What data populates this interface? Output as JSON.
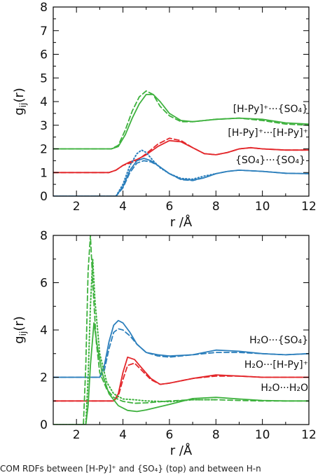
{
  "caption": "COM RDFs between [H-Py]⁺ and {SO₄} (top) and between H-n",
  "colors": {
    "green": "#3db13d",
    "red": "#e3272b",
    "blue": "#2c7fbc"
  },
  "chart_data": [
    {
      "type": "line",
      "panel": "top",
      "xlabel": "r /Å",
      "ylabel": "g",
      "ylabel_sub": "ij",
      "ylabel_suffix": "(r)",
      "xlim": [
        1,
        12
      ],
      "ylim": [
        0,
        8
      ],
      "xticks": [
        2,
        4,
        6,
        8,
        10,
        12
      ],
      "yticks": [
        0,
        1,
        2,
        3,
        4,
        5,
        6,
        7,
        8
      ],
      "grid": false,
      "series": [
        {
          "name": "[H-Py]⁺···{SO₄}",
          "color": "green",
          "style": "solid",
          "x": [
            1,
            3.5,
            3.8,
            4.1,
            4.4,
            4.7,
            5.0,
            5.3,
            5.6,
            6.0,
            6.5,
            7.0,
            7.5,
            8.0,
            9.0,
            10.0,
            11.0,
            12.0
          ],
          "y": [
            2.0,
            2.0,
            2.1,
            2.6,
            3.3,
            3.9,
            4.3,
            4.3,
            4.0,
            3.5,
            3.2,
            3.15,
            3.2,
            3.25,
            3.3,
            3.25,
            3.1,
            3.05
          ]
        },
        {
          "name": "",
          "color": "green",
          "style": "dashed",
          "x": [
            1,
            3.5,
            3.8,
            4.1,
            4.4,
            4.7,
            5.0,
            5.3,
            5.6,
            6.0,
            6.5,
            7.0,
            7.5,
            8.0,
            9.0,
            10.0,
            11.0,
            12.0
          ],
          "y": [
            2.0,
            2.0,
            2.15,
            2.8,
            3.6,
            4.2,
            4.45,
            4.3,
            3.8,
            3.4,
            3.15,
            3.15,
            3.2,
            3.25,
            3.3,
            3.2,
            3.05,
            3.0
          ]
        },
        {
          "name": "[H-Py]⁺···[H-Py]⁺",
          "color": "red",
          "style": "solid",
          "x": [
            1,
            3.4,
            3.7,
            4.0,
            4.3,
            4.6,
            5.0,
            5.5,
            6.0,
            6.5,
            7.0,
            7.5,
            8.0,
            8.5,
            9.0,
            9.5,
            10.0,
            11.0,
            12.0
          ],
          "y": [
            1.0,
            1.0,
            1.1,
            1.3,
            1.45,
            1.55,
            1.75,
            2.1,
            2.35,
            2.3,
            2.05,
            1.8,
            1.75,
            1.85,
            2.0,
            2.05,
            2.0,
            1.95,
            1.95
          ]
        },
        {
          "name": "",
          "color": "red",
          "style": "dashed",
          "x": [
            1,
            3.4,
            3.7,
            4.0,
            4.3,
            4.6,
            5.0,
            5.5,
            6.0,
            6.5,
            7.0,
            7.5,
            8.0,
            8.5,
            9.0,
            9.5,
            10.0,
            11.0,
            12.0
          ],
          "y": [
            1.0,
            1.0,
            1.1,
            1.3,
            1.4,
            1.5,
            1.8,
            2.2,
            2.45,
            2.35,
            2.05,
            1.8,
            1.75,
            1.85,
            2.0,
            2.05,
            2.0,
            1.95,
            1.95
          ]
        },
        {
          "name": "{SO₄}···{SO₄}",
          "color": "blue",
          "style": "solid",
          "x": [
            1,
            3.7,
            4.0,
            4.3,
            4.6,
            4.9,
            5.2,
            5.5,
            6.0,
            6.5,
            7.0,
            7.5,
            8.0,
            8.5,
            9.0,
            10.0,
            11.0,
            12.0
          ],
          "y": [
            0.0,
            0.0,
            0.4,
            1.1,
            1.5,
            1.6,
            1.5,
            1.3,
            0.95,
            0.72,
            0.68,
            0.78,
            0.95,
            1.05,
            1.1,
            1.05,
            0.97,
            0.95
          ]
        },
        {
          "name": "",
          "color": "blue",
          "style": "dashed",
          "x": [
            1,
            3.7,
            4.0,
            4.3,
            4.6,
            4.9,
            5.2,
            5.5,
            6.0,
            6.5,
            7.0,
            7.5,
            8.0,
            8.5,
            9.0,
            10.0,
            11.0,
            12.0
          ],
          "y": [
            0.0,
            0.0,
            0.35,
            1.0,
            1.4,
            1.5,
            1.45,
            1.3,
            0.95,
            0.7,
            0.66,
            0.78,
            0.95,
            1.05,
            1.1,
            1.05,
            0.97,
            0.95
          ]
        },
        {
          "name": "",
          "color": "blue",
          "style": "dotted",
          "x": [
            1,
            3.7,
            4.0,
            4.3,
            4.6,
            4.8,
            5.0,
            5.3,
            5.6,
            6.0,
            6.5,
            7.0,
            7.5,
            8.0
          ],
          "y": [
            0.0,
            0.0,
            0.5,
            1.3,
            1.8,
            1.95,
            1.85,
            1.5,
            1.2,
            0.95,
            0.75,
            0.72,
            0.85,
            0.95
          ]
        }
      ]
    },
    {
      "type": "line",
      "panel": "bottom",
      "xlabel": "r /Å",
      "ylabel": "g",
      "ylabel_sub": "ij",
      "ylabel_suffix": "(r)",
      "xlim": [
        1,
        12
      ],
      "ylim": [
        0,
        8
      ],
      "xticks": [
        2,
        4,
        6,
        8,
        10,
        12
      ],
      "yticks": [
        0,
        2,
        4,
        6,
        8
      ],
      "grid": false,
      "series": [
        {
          "name": "H₂O···{SO₄}",
          "color": "blue",
          "style": "solid",
          "x": [
            1,
            3.0,
            3.2,
            3.4,
            3.6,
            3.8,
            4.0,
            4.3,
            4.6,
            5.0,
            5.5,
            6.0,
            7.0,
            8.0,
            9.0,
            10.0,
            11.0,
            12.0
          ],
          "y": [
            2.0,
            2.0,
            2.5,
            3.5,
            4.2,
            4.4,
            4.3,
            3.9,
            3.4,
            3.05,
            2.95,
            2.9,
            2.95,
            3.15,
            3.1,
            3.0,
            2.95,
            3.0
          ]
        },
        {
          "name": "",
          "color": "blue",
          "style": "dashed",
          "x": [
            1,
            3.0,
            3.2,
            3.4,
            3.6,
            3.8,
            4.0,
            4.3,
            4.6,
            5.0,
            5.5,
            6.0,
            7.0,
            8.0,
            9.0,
            10.0,
            11.0,
            12.0
          ],
          "y": [
            2.0,
            2.0,
            2.3,
            3.2,
            3.9,
            4.05,
            4.0,
            3.75,
            3.4,
            3.05,
            2.9,
            2.85,
            2.95,
            3.05,
            3.05,
            3.0,
            2.95,
            3.0
          ]
        },
        {
          "name": "H₂O···[H-Py]⁺",
          "color": "red",
          "style": "solid",
          "x": [
            1,
            3.6,
            3.8,
            4.0,
            4.2,
            4.5,
            4.8,
            5.2,
            5.6,
            6.0,
            7.0,
            8.0,
            9.0,
            10.0,
            11.0,
            12.0
          ],
          "y": [
            1.0,
            1.0,
            1.3,
            2.2,
            2.85,
            2.75,
            2.4,
            1.95,
            1.7,
            1.75,
            1.95,
            2.1,
            2.05,
            2.0,
            2.0,
            2.0
          ]
        },
        {
          "name": "",
          "color": "red",
          "style": "dashed",
          "x": [
            1,
            3.6,
            3.8,
            4.0,
            4.2,
            4.5,
            4.8,
            5.2,
            5.6,
            6.0,
            7.0,
            8.0,
            9.0,
            10.0,
            11.0,
            12.0
          ],
          "y": [
            1.0,
            1.0,
            1.2,
            1.9,
            2.5,
            2.6,
            2.3,
            1.9,
            1.7,
            1.75,
            1.95,
            2.05,
            2.05,
            2.0,
            2.0,
            2.0
          ]
        },
        {
          "name": "H₂O···H₂O",
          "color": "green",
          "style": "solid",
          "x": [
            1,
            2.4,
            2.5,
            2.6,
            2.75,
            2.9,
            3.1,
            3.4,
            3.8,
            4.2,
            4.6,
            5.0,
            6.0,
            7.0,
            8.0,
            9.0,
            10.0,
            11.0,
            12.0
          ],
          "y": [
            0.0,
            0.0,
            0.8,
            2.5,
            4.3,
            3.3,
            2.2,
            1.3,
            0.8,
            0.6,
            0.55,
            0.62,
            0.85,
            1.1,
            1.15,
            1.08,
            1.02,
            1.0,
            1.0
          ]
        },
        {
          "name": "",
          "color": "green",
          "style": "dashed",
          "x": [
            1,
            2.3,
            2.4,
            2.5,
            2.6,
            2.7,
            2.85,
            3.0,
            3.3,
            3.6,
            4.0,
            4.5,
            5.0,
            6.0,
            7.0,
            8.0,
            9.0,
            10.0,
            12.0
          ],
          "y": [
            0.0,
            0.0,
            2.5,
            6.5,
            8.0,
            6.0,
            3.5,
            2.2,
            1.5,
            1.15,
            0.98,
            0.9,
            0.92,
            1.0,
            1.05,
            1.05,
            1.02,
            1.0,
            1.0
          ]
        },
        {
          "name": "",
          "color": "green",
          "style": "dotted",
          "x": [
            1,
            2.4,
            2.5,
            2.6,
            2.7,
            2.8,
            3.0,
            3.3,
            3.6,
            4.0,
            4.5,
            5.0,
            6.0,
            7.0,
            8.0
          ],
          "y": [
            0.0,
            0.0,
            2.0,
            5.0,
            7.0,
            5.2,
            3.0,
            1.8,
            1.3,
            1.08,
            1.05,
            1.0,
            0.97,
            1.05,
            1.05
          ]
        }
      ]
    }
  ]
}
